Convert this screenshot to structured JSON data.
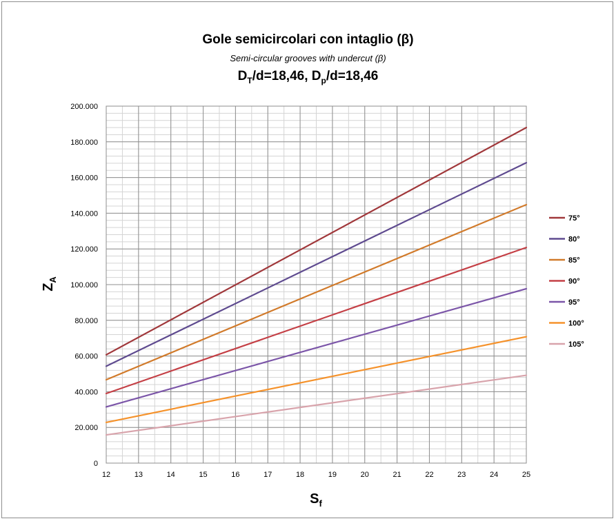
{
  "chart_data": {
    "type": "line",
    "title": "Gole semicircolari con intaglio (β)",
    "subtitle": "Semi-circular grooves with undercut (β)",
    "title_line3": {
      "a": "D",
      "a_sub": "T",
      "b": "/d=18,46, D",
      "b_sub": "p",
      "c": "/d=18,46"
    },
    "xlabel": {
      "main": "S",
      "sub": "f"
    },
    "ylabel": {
      "main": "Z",
      "sub": "A"
    },
    "xlim": [
      12,
      25
    ],
    "ylim": [
      0,
      200000
    ],
    "x_ticks": [
      "12",
      "13",
      "14",
      "15",
      "16",
      "17",
      "18",
      "19",
      "20",
      "21",
      "22",
      "23",
      "24",
      "25"
    ],
    "y_ticks": [
      {
        "value": 0,
        "label": "0"
      },
      {
        "value": 20000,
        "label": "20.000"
      },
      {
        "value": 40000,
        "label": "40.000"
      },
      {
        "value": 60000,
        "label": "60.000"
      },
      {
        "value": 80000,
        "label": "80.000"
      },
      {
        "value": 100000,
        "label": "100.000"
      },
      {
        "value": 120000,
        "label": "120.000"
      },
      {
        "value": 140000,
        "label": "140.000"
      },
      {
        "value": 160000,
        "label": "160.000"
      },
      {
        "value": 180000,
        "label": "180.000"
      },
      {
        "value": 200000,
        "label": "200.000"
      }
    ],
    "grid": true,
    "minor_grid_x": 0.5,
    "minor_grid_y": 4000,
    "legend_position": "right",
    "series": [
      {
        "name": "75°",
        "color": "#a0373a",
        "x": [
          12,
          25
        ],
        "y": [
          60700,
          188000
        ]
      },
      {
        "name": "80°",
        "color": "#5e4a8f",
        "x": [
          12,
          25
        ],
        "y": [
          54300,
          168300
        ]
      },
      {
        "name": "85°",
        "color": "#d17a2a",
        "x": [
          12,
          25
        ],
        "y": [
          46700,
          144800
        ]
      },
      {
        "name": "90°",
        "color": "#c43f45",
        "x": [
          12,
          25
        ],
        "y": [
          39000,
          120800
        ]
      },
      {
        "name": "95°",
        "color": "#7b55a8",
        "x": [
          12,
          25
        ],
        "y": [
          31500,
          97700
        ]
      },
      {
        "name": "100°",
        "color": "#f5922b",
        "x": [
          12,
          25
        ],
        "y": [
          22800,
          70800
        ]
      },
      {
        "name": "105°",
        "color": "#d8a3ab",
        "x": [
          12,
          25
        ],
        "y": [
          15800,
          49200
        ]
      }
    ]
  }
}
